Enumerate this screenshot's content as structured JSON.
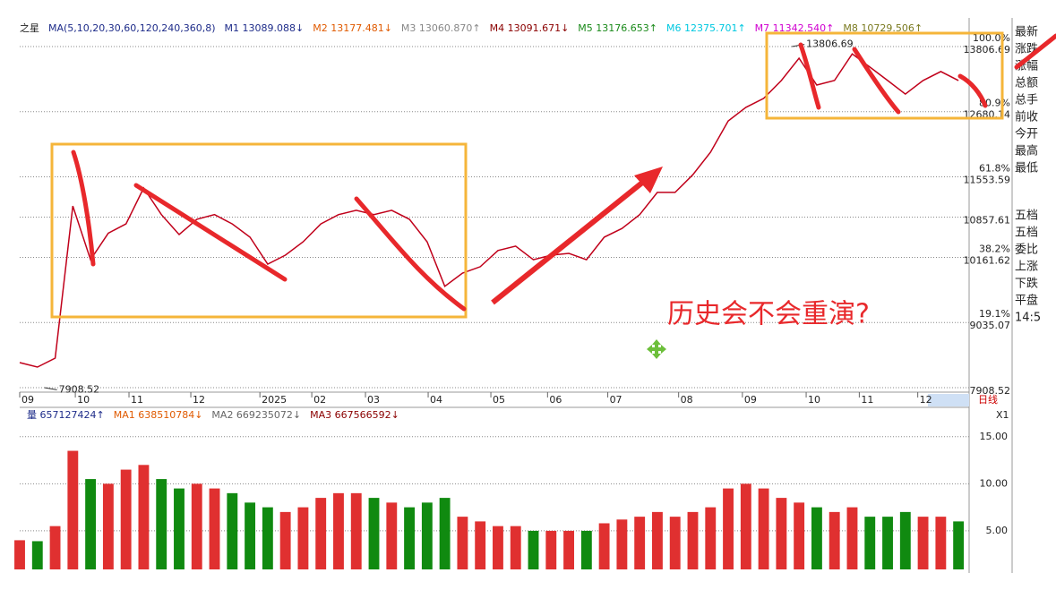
{
  "header": {
    "name": "之星",
    "ma_spec": "MA(5,10,20,30,60,120,240,360,8)",
    "items": [
      {
        "text": "M1 13089.088↓",
        "color": "#1f2d8a"
      },
      {
        "text": "M2 13177.481↓",
        "color": "#e05a00"
      },
      {
        "text": "M3 13060.870↑",
        "color": "#888888"
      },
      {
        "text": "M4 13091.671↓",
        "color": "#8b0000"
      },
      {
        "text": "M5 13176.653↑",
        "color": "#1a8a1a"
      },
      {
        "text": "M6 12375.701↑",
        "color": "#00c8e0"
      },
      {
        "text": "M7 11342.540↑",
        "color": "#d000d0"
      },
      {
        "text": "M8 10729.506↑",
        "color": "#7a7a20"
      }
    ]
  },
  "volume_header": {
    "items": [
      {
        "text": "量 657127424↑",
        "color": "#1f2d8a"
      },
      {
        "text": "MA1 638510784↓",
        "color": "#e05a00"
      },
      {
        "text": "MA2 669235072↓",
        "color": "#666666"
      },
      {
        "text": "MA3 667566592↓",
        "color": "#8b0000"
      }
    ]
  },
  "side_panel": [
    "最新",
    "涨跌",
    "涨幅",
    "总额",
    "总手",
    "前收",
    "今开",
    "最高",
    "最低",
    "五档",
    "五档",
    "委比",
    "上涨",
    "下跌",
    "平盘",
    "14:5"
  ],
  "period_label": "日线",
  "scale_label": "X1",
  "annotation": "历史会不会重演?",
  "chart_data": [
    {
      "type": "line",
      "color": "#c0001a",
      "grid": true,
      "x": [
        0,
        1,
        2,
        3,
        4,
        5,
        6,
        7,
        8,
        9,
        10,
        11,
        12,
        13,
        14,
        15,
        16,
        17,
        18,
        19,
        20,
        21,
        22,
        23,
        24,
        25,
        26,
        27,
        28,
        29,
        30,
        31,
        32,
        33,
        34,
        35,
        36,
        37,
        38,
        39,
        40,
        41,
        42,
        43,
        44,
        45,
        46,
        47,
        48,
        49,
        50,
        51,
        52,
        53
      ],
      "values": [
        8342,
        8265,
        8420,
        11050,
        10120,
        10580,
        10740,
        11360,
        10900,
        10555,
        10820,
        10900,
        10740,
        10510,
        10045,
        10200,
        10430,
        10740,
        10900,
        10975,
        10900,
        10975,
        10820,
        10430,
        9660,
        9890,
        10000,
        10280,
        10355,
        10120,
        10200,
        10230,
        10120,
        10510,
        10660,
        10900,
        11285,
        11285,
        11590,
        11980,
        12520,
        12755,
        12910,
        13220,
        13605,
        13140,
        13220,
        13680,
        13450,
        13220,
        12985,
        13220,
        13375,
        13220
      ],
      "xlim": [
        0,
        53.6
      ],
      "ylim": [
        7831,
        13992
      ],
      "yticks": [
        13806.69,
        12680.14,
        11553.59,
        10857.61,
        10161.62,
        9035.07,
        7908.52
      ],
      "ytick_percent_labels": [
        "100.0%",
        "80.9%",
        "61.8%",
        null,
        "38.2%",
        "19.1%",
        null
      ],
      "xticks": [
        {
          "value": 0,
          "label": "09"
        },
        {
          "value": 3.14,
          "label": "10"
        },
        {
          "value": 6.17,
          "label": "11"
        },
        {
          "value": 9.66,
          "label": "12"
        },
        {
          "value": 13.56,
          "label": "2025"
        },
        {
          "value": 16.49,
          "label": "02"
        },
        {
          "value": 19.52,
          "label": "03"
        },
        {
          "value": 23.06,
          "label": "04"
        },
        {
          "value": 26.6,
          "label": "05"
        },
        {
          "value": 29.8,
          "label": "06"
        },
        {
          "value": 33.2,
          "label": "07"
        },
        {
          "value": 37.2,
          "label": "08"
        },
        {
          "value": 40.8,
          "label": "09"
        },
        {
          "value": 44.4,
          "label": "10"
        },
        {
          "value": 47.4,
          "label": "11"
        },
        {
          "value": 50.7,
          "label": "12"
        }
      ],
      "high": {
        "x": 44,
        "value": 13806.69
      },
      "low": {
        "x": 1.8,
        "value": 7908.52
      }
    },
    {
      "type": "bar",
      "up_color": "#e03030",
      "down_color": "#108a10",
      "values": [
        4.0,
        3.9,
        5.5,
        13.5,
        10.5,
        10.0,
        11.5,
        12.0,
        10.5,
        9.5,
        10.0,
        9.5,
        9.0,
        8.0,
        7.5,
        7.0,
        7.5,
        8.5,
        9.0,
        9.0,
        8.5,
        8.0,
        7.5,
        8.0,
        8.5,
        6.5,
        6.0,
        5.5,
        5.5,
        5.0,
        5.0,
        5.0,
        5.0,
        5.8,
        6.2,
        6.5,
        7.0,
        6.5,
        7.0,
        7.5,
        9.5,
        10.0,
        9.5,
        8.5,
        8.0,
        7.5,
        7.0,
        7.5,
        6.5,
        6.5,
        7.0,
        6.5,
        6.5,
        6.0
      ],
      "ylim": [
        0.9,
        16.5
      ],
      "yticks": [
        {
          "value": 15,
          "label": "15.00"
        },
        {
          "value": 10,
          "label": "10.00"
        },
        {
          "value": 5,
          "label": "5.00"
        }
      ]
    }
  ]
}
